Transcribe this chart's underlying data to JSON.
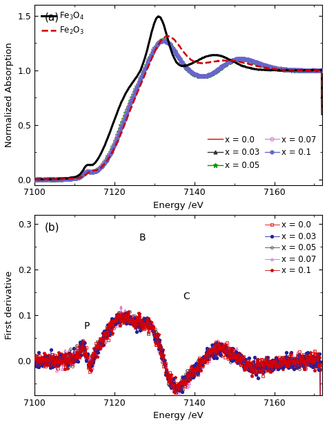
{
  "xmin": 7100,
  "xmax": 7172,
  "panel_a": {
    "ylabel": "Normalized Absorption",
    "xlabel": "Energy /eV",
    "ylim": [
      -0.05,
      1.6
    ],
    "yticks": [
      0.0,
      0.5,
      1.0,
      1.5
    ],
    "label": "(a)"
  },
  "panel_b": {
    "ylabel": "First derivative",
    "xlabel": "Energy /eV",
    "ylim": [
      -0.075,
      0.32
    ],
    "yticks": [
      0.0,
      0.1,
      0.2,
      0.3
    ],
    "label": "(b)"
  },
  "background_color": "#ffffff"
}
